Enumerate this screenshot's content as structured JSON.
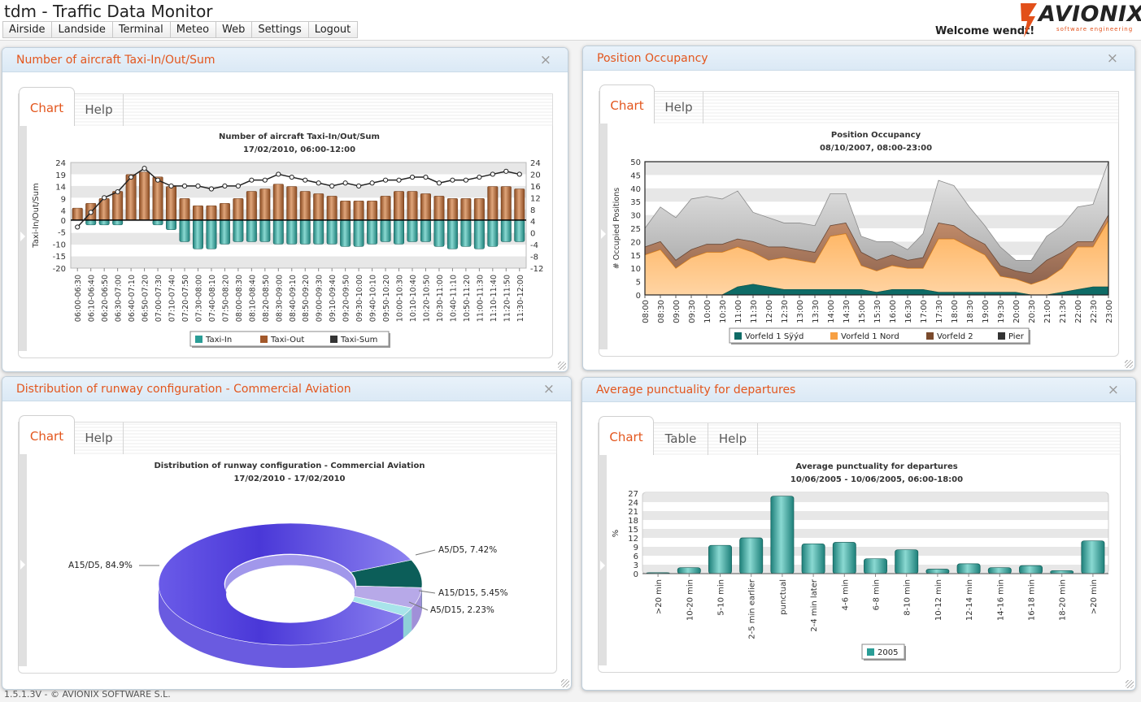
{
  "app": {
    "title": "tdm - Traffic Data Monitor",
    "welcome": "Welcome wendt!",
    "logo": "AVIONIX",
    "logo_sub": "software engineering",
    "footer": "1.5.1.3V - © AVIONIX SOFTWARE S.L."
  },
  "menu": [
    "Airside",
    "Landside",
    "Terminal",
    "Meteo",
    "Web",
    "Settings",
    "Logout"
  ],
  "close_icon": "×",
  "colors": {
    "accent": "#e3561d",
    "taxi_in": "#2a9d96",
    "taxi_out": "#a2582a",
    "vorfeld_sued": "#0e6b66",
    "vorfeld_nord": "#f7a043",
    "vorfeld_2": "#7a4a2c",
    "pier": "#333333",
    "donut_main": "#5544dd",
    "bar": "#2a9d96"
  },
  "panels": {
    "taxi": {
      "title": "Number of aircraft Taxi-In/Out/Sum",
      "tabs": [
        "Chart",
        "Help"
      ]
    },
    "occ": {
      "title": "Position Occupancy",
      "tabs": [
        "Chart",
        "Help"
      ]
    },
    "rwy": {
      "title": "Distribution of runway configuration - Commercial Aviation",
      "tabs": [
        "Chart",
        "Help"
      ]
    },
    "punct": {
      "title": "Average punctuality for departures",
      "tabs": [
        "Chart",
        "Table",
        "Help"
      ]
    }
  },
  "chart_data": [
    {
      "type": "bar",
      "id": "taxi",
      "title": "Number of aircraft Taxi-In/Out/Sum",
      "subtitle": "17/02/2010, 06:00-12:00",
      "ylabel": "Taxi-In/Out/Sum",
      "yticks_left": [
        24,
        19,
        14,
        9,
        4,
        0,
        -5,
        -10,
        -15,
        -20
      ],
      "yticks_right": [
        24,
        20,
        16,
        12,
        8,
        4,
        0,
        -4,
        -8,
        -12
      ],
      "ylim": [
        -20,
        24
      ],
      "categories": [
        "06:00-06:30",
        "06:10-06:40",
        "06:20-06:50",
        "06:30-07:00",
        "06:40-07:10",
        "06:50-07:20",
        "07:00-07:30",
        "07:10-07:40",
        "07:20-07:50",
        "07:30-08:00",
        "07:40-08:10",
        "07:50-08:20",
        "08:00-08:30",
        "08:10-08:40",
        "08:20-08:50",
        "08:30-09:00",
        "08:40-09:10",
        "08:50-09:20",
        "09:00-09:30",
        "09:10-09:40",
        "09:20-09:50",
        "09:30-10:00",
        "09:40-10:10",
        "09:50-10:20",
        "10:00-10:30",
        "10:10-10:40",
        "10:20-10:50",
        "10:30-11:00",
        "10:40-11:10",
        "10:50-11:20",
        "11:00-11:30",
        "11:10-11:40",
        "11:20-11:50",
        "11:30-12:00"
      ],
      "series": [
        {
          "name": "Taxi-In",
          "values": [
            0,
            -2,
            -2,
            -2,
            0,
            0,
            -2,
            -4,
            -9,
            -12,
            -12,
            -10,
            -9,
            -9,
            -9,
            -10,
            -10,
            -10,
            -10,
            -10,
            -11,
            -11,
            -10,
            -9,
            -10,
            -9,
            -9,
            -11,
            -12,
            -11,
            -12,
            -11,
            -9,
            -9
          ]
        },
        {
          "name": "Taxi-Out",
          "values": [
            5,
            7,
            9,
            12,
            19,
            20,
            18,
            14,
            9,
            6,
            6,
            7,
            9,
            12,
            13,
            15,
            14,
            12,
            11,
            10,
            8,
            8,
            8,
            10,
            12,
            12,
            11,
            10,
            9,
            9,
            9,
            14,
            14,
            13
          ]
        },
        {
          "name": "Taxi-Sum",
          "values": [
            2,
            7,
            12,
            14,
            19,
            22,
            18,
            16,
            16,
            16,
            15,
            16,
            16,
            18,
            18,
            20,
            19,
            18,
            17,
            16,
            17,
            16,
            17,
            18,
            18,
            19,
            19,
            17,
            18,
            18,
            19,
            20,
            21,
            20
          ]
        }
      ]
    },
    {
      "type": "area",
      "id": "occ",
      "title": "Position Occupancy",
      "subtitle": "08/10/2007, 08:00-23:00",
      "ylabel": "# Occupied Positions",
      "ylim": [
        0,
        50
      ],
      "yticks": [
        50,
        45,
        40,
        35,
        30,
        25,
        20,
        15,
        10,
        5,
        0
      ],
      "x": [
        "08:00",
        "08:30",
        "09:00",
        "09:30",
        "10:00",
        "10:30",
        "11:00",
        "11:30",
        "12:00",
        "12:30",
        "13:00",
        "13:30",
        "14:00",
        "14:30",
        "15:00",
        "15:30",
        "16:00",
        "16:30",
        "17:00",
        "17:30",
        "18:00",
        "18:30",
        "19:00",
        "19:30",
        "20:00",
        "20:30",
        "21:00",
        "21:30",
        "22:00",
        "22:30",
        "23:00"
      ],
      "series": [
        {
          "name": "Vorfeld 1 Sÿýd",
          "values": [
            0,
            0,
            0,
            0,
            0,
            0,
            3,
            4,
            3,
            2,
            2,
            2,
            2,
            2,
            2,
            1,
            2,
            2,
            2,
            1,
            1,
            1,
            1,
            1,
            1,
            0,
            0,
            1,
            2,
            3,
            3
          ]
        },
        {
          "name": "Vorfeld 1 Nord",
          "values": [
            15,
            17,
            10,
            14,
            16,
            16,
            15,
            12,
            10,
            12,
            11,
            10,
            20,
            21,
            9,
            8,
            9,
            8,
            8,
            20,
            20,
            17,
            14,
            6,
            5,
            4,
            6,
            9,
            16,
            15,
            25
          ]
        },
        {
          "name": "Vorfeld 2",
          "values": [
            3,
            3,
            3,
            3,
            3,
            3,
            3,
            4,
            5,
            4,
            4,
            4,
            4,
            4,
            5,
            4,
            4,
            3,
            4,
            6,
            5,
            4,
            4,
            4,
            3,
            4,
            7,
            6,
            2,
            2,
            2
          ]
        },
        {
          "name": "Pier",
          "values": [
            7,
            13,
            16,
            19,
            18,
            17,
            18,
            11,
            11,
            9,
            10,
            10,
            12,
            11,
            6,
            7,
            5,
            4,
            9,
            16,
            15,
            11,
            7,
            7,
            4,
            5,
            9,
            10,
            13,
            14,
            20
          ]
        }
      ]
    },
    {
      "type": "pie",
      "id": "rwy",
      "title": "Distribution of runway configuration - Commercial Aviation",
      "subtitle": "17/02/2010 - 17/02/2010",
      "slices": [
        {
          "label": "A15/D5, 84.9%",
          "value": 84.9
        },
        {
          "label": "A5/D5, 7.42%",
          "value": 7.42
        },
        {
          "label": "A15/D15, 5.45%",
          "value": 5.45
        },
        {
          "label": "A5/D15, 2.23%",
          "value": 2.23
        }
      ]
    },
    {
      "type": "bar",
      "id": "punct",
      "title": "Average punctuality for departures",
      "subtitle": "10/06/2005 - 10/06/2005, 06:00-18:00",
      "ylabel": "%",
      "ylim": [
        0,
        27
      ],
      "yticks": [
        27,
        24,
        21,
        18,
        15,
        12,
        9,
        6,
        3,
        0
      ],
      "categories": [
        ">20 min",
        "10-20 min",
        "5-10 min",
        "2-5 min earlier",
        "punctual",
        "2-4 min later",
        "4-6 min",
        "6-8 min",
        "8-10 min",
        "10-12 min",
        "12-14 min",
        "14-16 min",
        "16-18 min",
        "18-20 min",
        ">20 min"
      ],
      "series": [
        {
          "name": "2005",
          "values": [
            0.3,
            2,
            9.5,
            12,
            26,
            10,
            10.5,
            5,
            8,
            1.5,
            3.3,
            2,
            2.7,
            1,
            11
          ]
        }
      ]
    }
  ]
}
